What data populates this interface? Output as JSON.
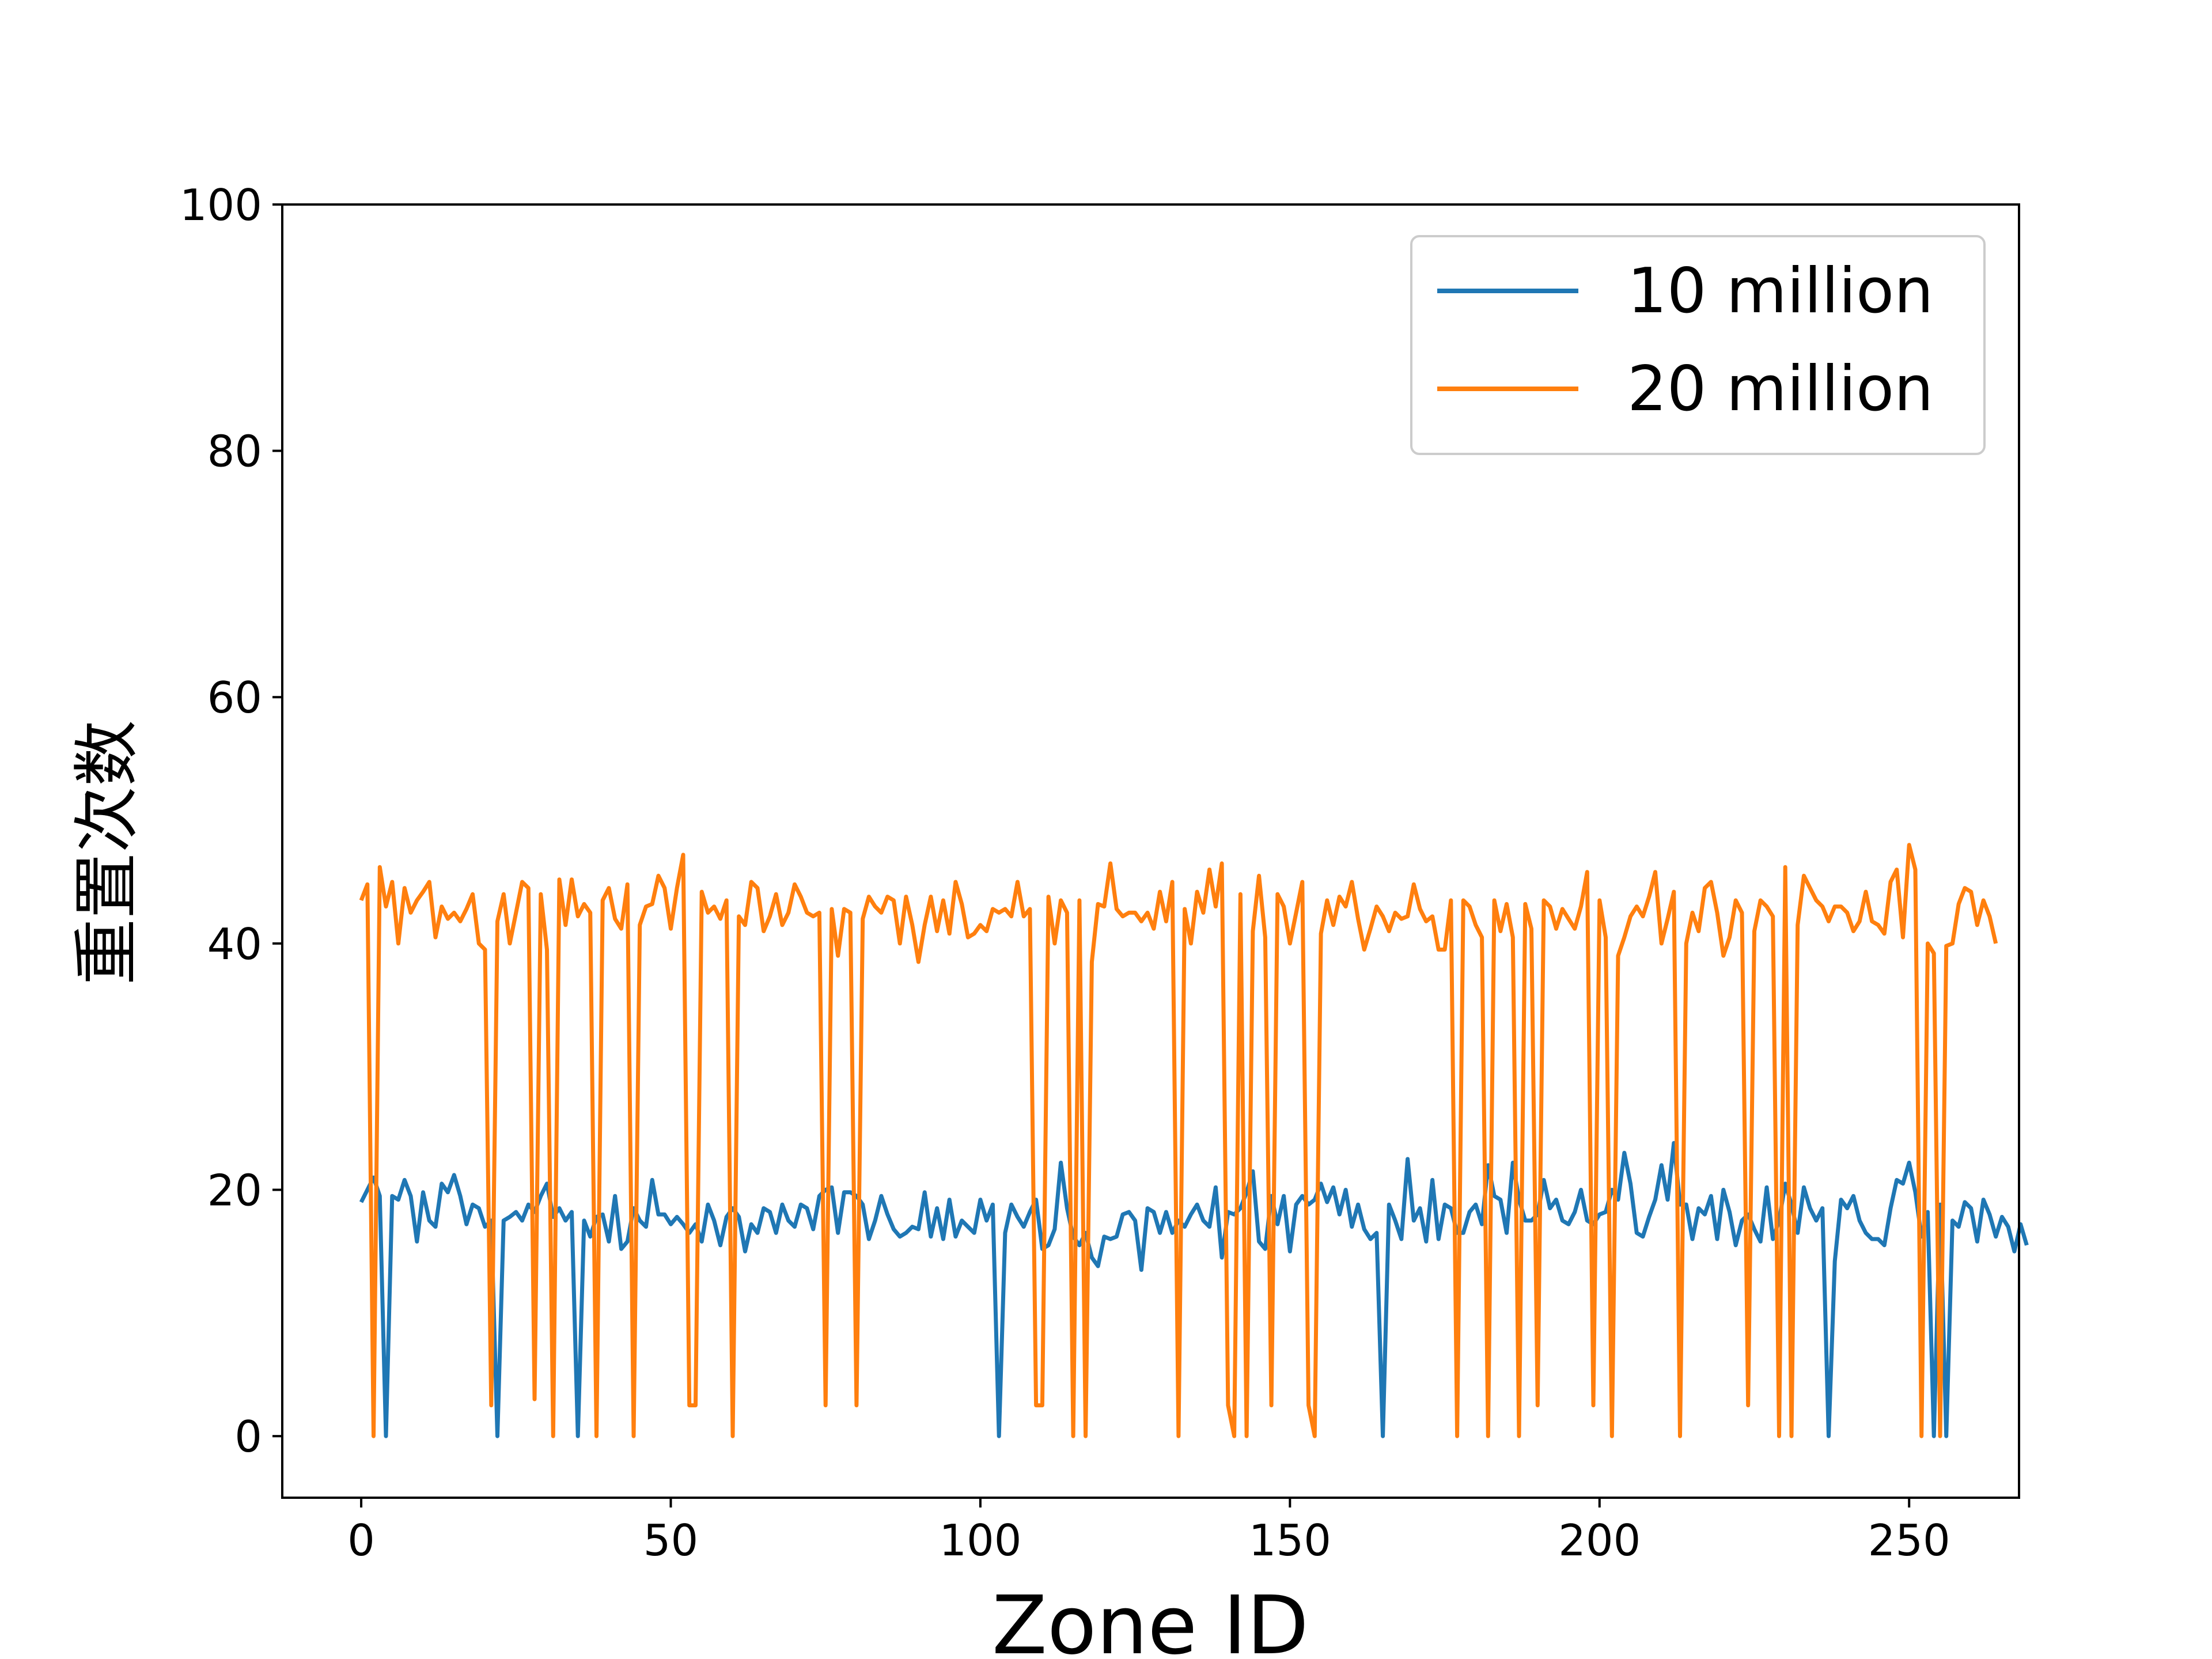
{
  "chart_data": {
    "type": "line",
    "title": "",
    "xlabel": "Zone ID",
    "ylabel": "重置次数",
    "xlim": [
      -12.75,
      267.75
    ],
    "ylim": [
      -5,
      100
    ],
    "xticks": [
      0,
      50,
      100,
      150,
      200,
      250
    ],
    "yticks": [
      0,
      20,
      40,
      60,
      80,
      100
    ],
    "grid": false,
    "legend_position": "top-right",
    "series": [
      {
        "name": "10 million",
        "color": "#1f77b4",
        "values": [
          19,
          20,
          21,
          19.5,
          0,
          19.5,
          19.2,
          20.8,
          19.5,
          15.8,
          19.8,
          17.5,
          17.0,
          20.5,
          19.8,
          21.2,
          19.5,
          17.2,
          18.8,
          18.5,
          17.0,
          17.5,
          0,
          17.5,
          17.8,
          18.2,
          17.5,
          18.8,
          18.2,
          19.5,
          20.5,
          17.8,
          18.5,
          17.5,
          18.2,
          0,
          17.5,
          16.2,
          17.8,
          18.0,
          15.8,
          19.5,
          15.2,
          15.8,
          18.5,
          17.5,
          17.0,
          20.8,
          18.0,
          18.0,
          17.2,
          17.8,
          17.2,
          16.5,
          17.2,
          15.8,
          18.8,
          17.5,
          15.5,
          17.8,
          18.5,
          17.8,
          15.0,
          17.2,
          16.5,
          18.5,
          18.2,
          16.5,
          18.8,
          17.5,
          17.0,
          18.8,
          18.5,
          16.8,
          19.5,
          20.0,
          20.2,
          16.5,
          19.8,
          19.8,
          19.5,
          18.8,
          16.0,
          17.5,
          19.5,
          18.0,
          16.8,
          16.2,
          16.5,
          17.0,
          16.8,
          19.8,
          16.2,
          18.5,
          16.0,
          19.2,
          16.2,
          17.5,
          17.0,
          16.5,
          19.2,
          17.5,
          18.8,
          0,
          16.5,
          18.8,
          17.8,
          17.0,
          18.2,
          19.2,
          15.2,
          15.5,
          16.8,
          22.2,
          18.5,
          16.2,
          15.5,
          16.5,
          14.5,
          13.8,
          16.2,
          16.0,
          16.2,
          18.0,
          18.2,
          17.5,
          13.5,
          18.5,
          18.2,
          16.5,
          18.2,
          16.5,
          17.5,
          17.0,
          18.0,
          18.8,
          17.5,
          17.0,
          20.2,
          14.5,
          18.2,
          18.0,
          18.5,
          19.8,
          21.5,
          15.8,
          15.2,
          19.5,
          17.2,
          19.5,
          15.0,
          18.8,
          19.5,
          18.8,
          19.2,
          20.5,
          19.0,
          20.2,
          18.0,
          20.0,
          17.0,
          18.8,
          16.8,
          16.0,
          16.5,
          0,
          18.8,
          17.5,
          16.0,
          22.5,
          17.5,
          18.5,
          15.8,
          20.8,
          16.0,
          18.8,
          18.5,
          16.5,
          16.5,
          18.2,
          18.8,
          17.2,
          22.0,
          19.5,
          19.2,
          16.5,
          22.2,
          19.2,
          17.5,
          17.5,
          18.0,
          20.8,
          18.5,
          19.2,
          17.5,
          17.2,
          18.2,
          20.0,
          17.5,
          17.2,
          18.0,
          18.2,
          20.0,
          19.2,
          23.0,
          20.5,
          16.5,
          16.2,
          17.8,
          19.2,
          22.0,
          19.2,
          23.8,
          18.8,
          18.8,
          16.0,
          18.5,
          18.0,
          19.5,
          16.0,
          20.0,
          18.2,
          15.5,
          17.5,
          18.0,
          16.8,
          15.8,
          20.2,
          16.0,
          17.5,
          20.5,
          18.8,
          16.5,
          20.2,
          18.5,
          17.5,
          18.5,
          0,
          14.2,
          19.2,
          18.5,
          19.5,
          17.5,
          16.5,
          16.0,
          16.0,
          15.5,
          18.5,
          20.8,
          20.5,
          22.2,
          19.8,
          16.2,
          18.2,
          0,
          18.8,
          0,
          17.5,
          17.0,
          19.0,
          18.5,
          15.8,
          19.2,
          18.0,
          16.2,
          17.8,
          17.0,
          15.0,
          17.2,
          15.5
        ]
      },
      {
        "name": "20 million",
        "color": "#ff7f0e",
        "values": [
          43.5,
          44.8,
          0,
          46.2,
          43.0,
          45.0,
          40.0,
          44.5,
          42.5,
          43.5,
          44.2,
          45.0,
          40.5,
          43.0,
          42.0,
          42.5,
          41.8,
          42.8,
          44.0,
          40.0,
          39.5,
          2.5,
          41.8,
          44.0,
          40.0,
          42.5,
          45.0,
          44.5,
          3.0,
          44.0,
          39.5,
          0,
          45.2,
          41.5,
          45.2,
          42.2,
          43.2,
          42.5,
          0,
          43.5,
          44.5,
          42.0,
          41.2,
          44.8,
          0,
          41.5,
          43.0,
          43.2,
          45.5,
          44.5,
          41.2,
          44.5,
          47.2,
          2.5,
          2.5,
          44.2,
          42.5,
          43.0,
          42.0,
          43.5,
          0,
          42.2,
          41.5,
          45.0,
          44.5,
          41.0,
          42.2,
          44.0,
          41.5,
          42.5,
          44.8,
          43.8,
          42.5,
          42.2,
          42.5,
          2.5,
          42.8,
          39.0,
          42.8,
          42.5,
          2.5,
          42.0,
          43.8,
          43.0,
          42.5,
          43.8,
          43.5,
          40.0,
          43.8,
          41.5,
          38.5,
          41.5,
          43.8,
          41.0,
          43.5,
          40.8,
          45.0,
          43.2,
          40.5,
          40.8,
          41.5,
          41.0,
          42.8,
          42.5,
          42.8,
          42.2,
          45.0,
          42.2,
          42.8,
          2.5,
          2.5,
          43.8,
          40.0,
          43.5,
          42.5,
          0,
          43.5,
          0,
          38.5,
          43.2,
          43.0,
          46.5,
          42.8,
          42.2,
          42.5,
          42.5,
          41.8,
          42.5,
          41.2,
          44.2,
          41.8,
          45.0,
          0,
          42.8,
          40.0,
          44.2,
          42.5,
          46.0,
          43.0,
          46.5,
          2.5,
          0,
          44.0,
          0,
          41.0,
          45.5,
          40.5,
          2.5,
          44.0,
          43.0,
          40.0,
          42.5,
          45.0,
          2.5,
          0,
          40.8,
          43.5,
          41.5,
          43.8,
          43.0,
          45.0,
          42.0,
          39.5,
          41.2,
          43.0,
          42.2,
          41.0,
          42.5,
          42.0,
          42.2,
          44.8,
          42.8,
          41.8,
          42.2,
          39.5,
          39.5,
          43.5,
          0,
          43.5,
          43.0,
          41.5,
          40.5,
          0,
          43.5,
          41.0,
          43.2,
          40.5,
          0,
          43.2,
          41.2,
          2.5,
          43.5,
          43.0,
          41.2,
          42.8,
          42.0,
          41.2,
          43.0,
          45.8,
          2.5,
          43.5,
          40.5,
          0,
          39.0,
          40.5,
          42.2,
          43.0,
          42.2,
          43.8,
          45.8,
          40.0,
          42.0,
          44.2,
          0,
          40.0,
          42.5,
          41.0,
          44.5,
          45.0,
          42.5,
          39.0,
          40.5,
          43.5,
          42.5,
          2.5,
          41.0,
          43.5,
          43.0,
          42.2,
          0,
          46.2,
          0,
          41.5,
          45.5,
          44.5,
          43.5,
          43.0,
          41.8,
          43.0,
          43.0,
          42.5,
          41.0,
          41.8,
          44.2,
          41.8,
          41.5,
          40.8,
          45.0,
          46.0,
          40.5,
          48.0,
          46.0,
          0,
          40.0,
          39.2,
          0,
          39.8,
          40.0,
          43.2,
          44.5,
          44.2,
          41.5,
          43.5,
          42.2,
          40.0
        ]
      }
    ]
  }
}
